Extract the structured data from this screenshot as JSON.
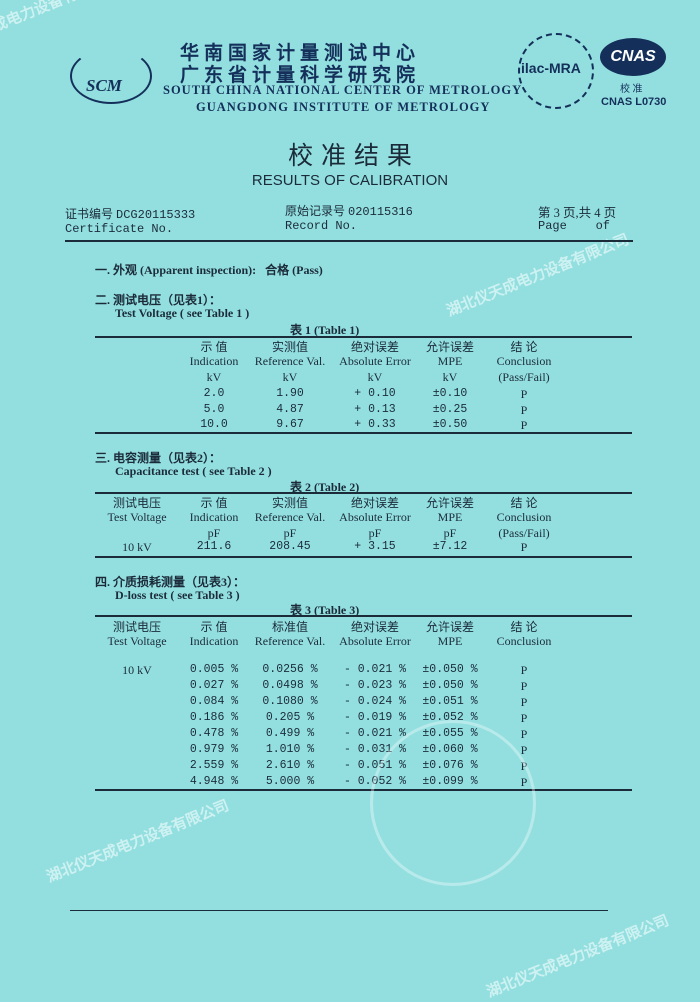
{
  "header": {
    "logo_text": "SCM",
    "org_cn_1": "华南国家计量测试中心",
    "org_cn_2": "广东省计量科学研究院",
    "org_en_1": "SOUTH CHINA NATIONAL CENTER OF METROLOGY",
    "org_en_2": "GUANGDONG INSTITUTE OF METROLOGY",
    "ilac_text": "ilac-MRA",
    "cnas_text": "CNAS",
    "cnas_sub": "校 准",
    "cnas_code": "CNAS L0730"
  },
  "title": {
    "cn": "校 准 结 果",
    "en": "RESULTS OF CALIBRATION"
  },
  "meta": {
    "cert_label_cn": "证书编号",
    "cert_no": "DCG20115333",
    "cert_label_en": "Certificate No.",
    "record_label_cn": "原始记录号",
    "record_no": "020115316",
    "record_label_en": "Record No.",
    "page_cn": "第 3 页,共 4 页",
    "page_en": "Page    of"
  },
  "section1": {
    "label": "一. 外观 (Apparent inspection):",
    "result": "合格 (Pass)"
  },
  "section2": {
    "label_cn": "二. 测试电压（见表1）：",
    "label_en": "Test Voltage ( see Table 1 )",
    "caption": "表 1 (Table 1)",
    "headers": [
      [
        "示 值",
        "Indication",
        "kV"
      ],
      [
        "实测值",
        "Reference Val.",
        "kV"
      ],
      [
        "绝对误差",
        "Absolute Error",
        "kV"
      ],
      [
        "允许误差",
        "MPE",
        "kV"
      ],
      [
        "结 论",
        "Conclusion",
        "(Pass/Fail)"
      ]
    ],
    "rows": [
      [
        "2.0",
        "1.90",
        "+ 0.10",
        "±0.10",
        "P"
      ],
      [
        "5.0",
        "4.87",
        "+ 0.13",
        "±0.25",
        "P"
      ],
      [
        "10.0",
        "9.67",
        "+ 0.33",
        "±0.50",
        "P"
      ]
    ]
  },
  "section3": {
    "label_cn": "三. 电容测量（见表2）：",
    "label_en": "Capacitance test ( see Table 2 )",
    "caption": "表 2 (Table 2)",
    "headers": [
      [
        "测试电压",
        "Test Voltage",
        ""
      ],
      [
        "示 值",
        "Indication",
        "pF"
      ],
      [
        "实测值",
        "Reference Val.",
        "pF"
      ],
      [
        "绝对误差",
        "Absolute Error",
        "pF"
      ],
      [
        "允许误差",
        "MPE",
        "pF"
      ],
      [
        "结 论",
        "Conclusion",
        "(Pass/Fail)"
      ]
    ],
    "rows": [
      [
        "10 kV",
        "211.6",
        "208.45",
        "+ 3.15",
        "±7.12",
        "P"
      ]
    ]
  },
  "section4": {
    "label_cn": "四. 介质损耗测量（见表3）：",
    "label_en": "D-loss test  ( see Table 3 )",
    "caption": "表 3 (Table 3)",
    "headers": [
      [
        "测试电压",
        "Test Voltage"
      ],
      [
        "示 值",
        "Indication"
      ],
      [
        "标准值",
        "Reference Val."
      ],
      [
        "绝对误差",
        "Absolute Error"
      ],
      [
        "允许误差",
        "MPE"
      ],
      [
        "结 论",
        "Conclusion"
      ]
    ],
    "rows": [
      [
        "10 kV",
        "0.005 %",
        "0.0256 %",
        "- 0.021 %",
        "±0.050 %",
        "P"
      ],
      [
        "",
        "0.027 %",
        "0.0498 %",
        "- 0.023 %",
        "±0.050 %",
        "P"
      ],
      [
        "",
        "0.084 %",
        "0.1080 %",
        "- 0.024 %",
        "±0.051 %",
        "P"
      ],
      [
        "",
        "0.186 %",
        "0.205 %",
        "- 0.019 %",
        "±0.052 %",
        "P"
      ],
      [
        "",
        "0.478 %",
        "0.499 %",
        "- 0.021 %",
        "±0.055 %",
        "P"
      ],
      [
        "",
        "0.979 %",
        "1.010 %",
        "- 0.031 %",
        "±0.060 %",
        "P"
      ],
      [
        "",
        "2.559 %",
        "2.610 %",
        "- 0.051 %",
        "±0.076 %",
        "P"
      ],
      [
        "",
        "4.948 %",
        "5.000 %",
        "- 0.052 %",
        "±0.099 %",
        "P"
      ]
    ]
  },
  "watermark": "湖北仪天成电力设备有限公司",
  "colors": {
    "background": "#93dfe0",
    "ink": "#1b2b3a",
    "org": "#14305a"
  }
}
